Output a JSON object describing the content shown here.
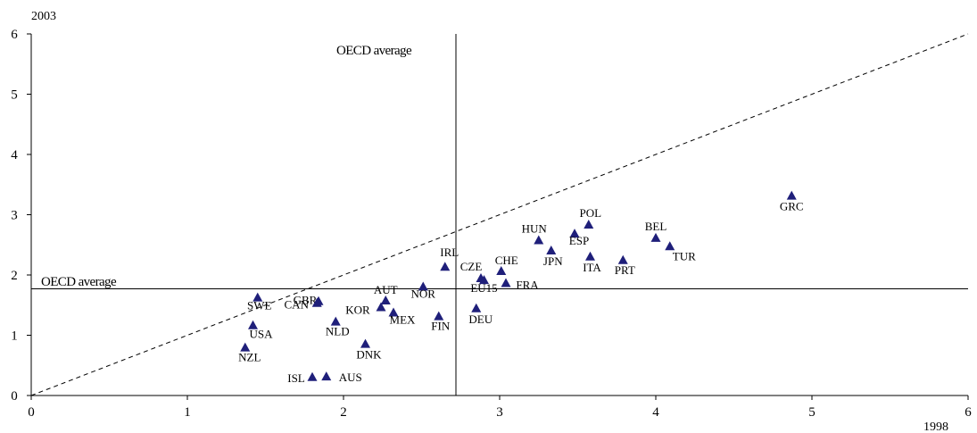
{
  "chart_data": {
    "type": "scatter",
    "ylabel": "2003",
    "xlabel": "1998",
    "xlim": [
      0,
      6
    ],
    "ylim": [
      0,
      6
    ],
    "xticks": [
      0,
      1,
      2,
      3,
      4,
      5,
      6
    ],
    "yticks": [
      0,
      1,
      2,
      3,
      4,
      5,
      6
    ],
    "grid": false,
    "marker": "triangle",
    "marker_color": "#1f1f7a",
    "diagonal": {
      "style": "dashed",
      "from": [
        0,
        0
      ],
      "to": [
        6,
        6
      ]
    },
    "reference_lines": {
      "x_average": 2.72,
      "y_average": 1.77,
      "vertical_label": "OECD average",
      "horizontal_label": "OECD average"
    },
    "points": [
      {
        "label": "GRC",
        "x": 4.87,
        "y": 3.31
      },
      {
        "label": "POL",
        "x": 3.57,
        "y": 2.83
      },
      {
        "label": "BEL",
        "x": 4.0,
        "y": 2.61
      },
      {
        "label": "HUN",
        "x": 3.25,
        "y": 2.57
      },
      {
        "label": "ESP",
        "x": 3.48,
        "y": 2.68
      },
      {
        "label": "TUR",
        "x": 4.09,
        "y": 2.47
      },
      {
        "label": "JPN",
        "x": 3.33,
        "y": 2.4
      },
      {
        "label": "ITA",
        "x": 3.58,
        "y": 2.3
      },
      {
        "label": "PRT",
        "x": 3.79,
        "y": 2.24
      },
      {
        "label": "IRL",
        "x": 2.65,
        "y": 2.13
      },
      {
        "label": "CZE",
        "x": 2.88,
        "y": 1.94
      },
      {
        "label": "CHE",
        "x": 3.01,
        "y": 2.06
      },
      {
        "label": "EU15",
        "x": 2.9,
        "y": 1.91
      },
      {
        "label": "FRA",
        "x": 3.04,
        "y": 1.86
      },
      {
        "label": "NOR",
        "x": 2.51,
        "y": 1.8
      },
      {
        "label": "AUT",
        "x": 2.27,
        "y": 1.57
      },
      {
        "label": "KOR",
        "x": 2.24,
        "y": 1.46
      },
      {
        "label": "MEX",
        "x": 2.32,
        "y": 1.37
      },
      {
        "label": "FIN",
        "x": 2.61,
        "y": 1.31
      },
      {
        "label": "DEU",
        "x": 2.85,
        "y": 1.44
      },
      {
        "label": "GBR",
        "x": 1.84,
        "y": 1.56
      },
      {
        "label": "CAN",
        "x": 1.83,
        "y": 1.53
      },
      {
        "label": "SWE",
        "x": 1.45,
        "y": 1.62
      },
      {
        "label": "NLD",
        "x": 1.95,
        "y": 1.22
      },
      {
        "label": "USA",
        "x": 1.42,
        "y": 1.16
      },
      {
        "label": "DNK",
        "x": 2.14,
        "y": 0.85
      },
      {
        "label": "NZL",
        "x": 1.37,
        "y": 0.79
      },
      {
        "label": "ISL",
        "x": 1.8,
        "y": 0.3
      },
      {
        "label": "AUS",
        "x": 1.89,
        "y": 0.31
      }
    ]
  }
}
